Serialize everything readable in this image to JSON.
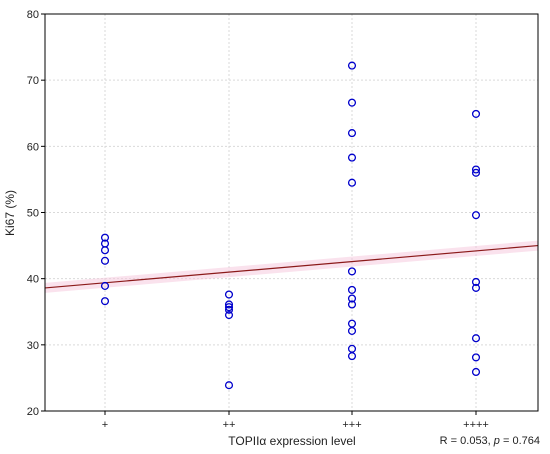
{
  "chart_data": {
    "type": "scatter",
    "xlabel": "TOPIIα expression level",
    "ylabel": "Ki67 (%)",
    "categories": [
      "+",
      "++",
      "+++",
      "++++"
    ],
    "ylim": [
      20,
      80
    ],
    "yticks": [
      20,
      30,
      40,
      50,
      60,
      70,
      80
    ],
    "grid": true,
    "points": [
      {
        "x": "+",
        "y": 46.2
      },
      {
        "x": "+",
        "y": 45.3
      },
      {
        "x": "+",
        "y": 44.3
      },
      {
        "x": "+",
        "y": 42.7
      },
      {
        "x": "+",
        "y": 38.9
      },
      {
        "x": "+",
        "y": 36.6
      },
      {
        "x": "++",
        "y": 37.6
      },
      {
        "x": "++",
        "y": 36.1
      },
      {
        "x": "++",
        "y": 35.7
      },
      {
        "x": "++",
        "y": 35.3
      },
      {
        "x": "++",
        "y": 34.5
      },
      {
        "x": "++",
        "y": 23.9
      },
      {
        "x": "+++",
        "y": 72.2
      },
      {
        "x": "+++",
        "y": 66.6
      },
      {
        "x": "+++",
        "y": 62.0
      },
      {
        "x": "+++",
        "y": 58.3
      },
      {
        "x": "+++",
        "y": 54.5
      },
      {
        "x": "+++",
        "y": 41.1
      },
      {
        "x": "+++",
        "y": 38.3
      },
      {
        "x": "+++",
        "y": 37.0
      },
      {
        "x": "+++",
        "y": 36.1
      },
      {
        "x": "+++",
        "y": 33.2
      },
      {
        "x": "+++",
        "y": 32.1
      },
      {
        "x": "+++",
        "y": 29.4
      },
      {
        "x": "+++",
        "y": 28.3
      },
      {
        "x": "++++",
        "y": 64.9
      },
      {
        "x": "++++",
        "y": 56.5
      },
      {
        "x": "++++",
        "y": 56.0
      },
      {
        "x": "++++",
        "y": 49.6
      },
      {
        "x": "++++",
        "y": 39.5
      },
      {
        "x": "++++",
        "y": 38.6
      },
      {
        "x": "++++",
        "y": 31.0
      },
      {
        "x": "++++",
        "y": 28.1
      },
      {
        "x": "++++",
        "y": 25.9
      }
    ],
    "regression": {
      "y_at_left": 38.6,
      "y_at_right": 45.0
    },
    "stat_prefix": "R = 0.053, ",
    "stat_p": "p",
    "stat_suffix": " = 0.764",
    "point_color": "#0000cc",
    "line_color": "#8b1a1a",
    "band_color": "#f5c6dc"
  }
}
